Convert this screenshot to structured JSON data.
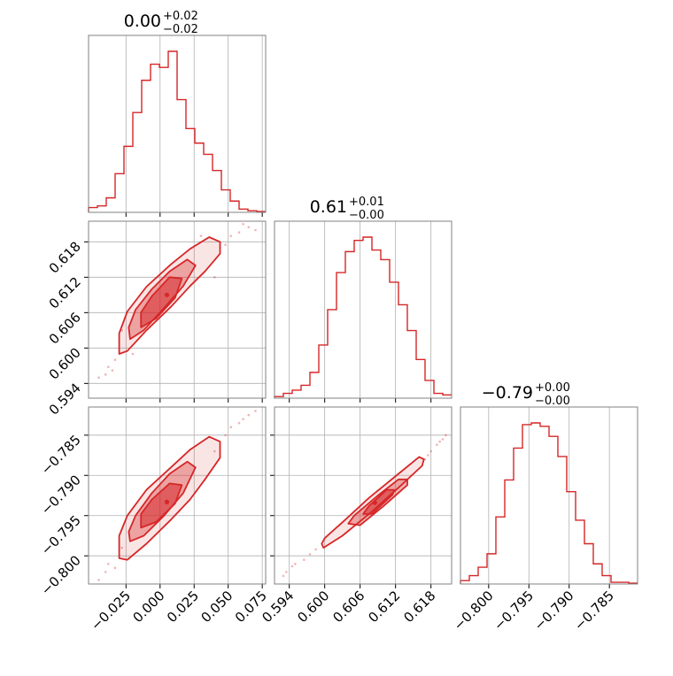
{
  "colors": {
    "accent": "#d62728",
    "frame": "#808080",
    "grid": "#b0b0b0"
  },
  "chart_data": [
    {
      "type": "histogram",
      "panel": "hist-param-1",
      "title": {
        "main": "0.00",
        "sup": "+0.02",
        "sub": "−0.02"
      },
      "xlim": [
        -0.0525,
        0.0775
      ],
      "xticks": [
        -0.025,
        0.0,
        0.025,
        0.05,
        0.075
      ],
      "grid": true,
      "bin_edges": [
        -0.0525,
        -0.046,
        -0.0395,
        -0.033,
        -0.0265,
        -0.02,
        -0.0135,
        -0.007,
        -0.0005,
        0.006,
        0.0125,
        0.019,
        0.0255,
        0.032,
        0.0385,
        0.045,
        0.0515,
        0.058,
        0.0645,
        0.071,
        0.0775
      ],
      "counts": [
        0.03,
        0.04,
        0.09,
        0.24,
        0.41,
        0.62,
        0.82,
        0.92,
        0.9,
        1.0,
        0.7,
        0.52,
        0.43,
        0.36,
        0.26,
        0.14,
        0.07,
        0.02,
        0.01,
        0.005
      ]
    },
    {
      "type": "histogram",
      "panel": "hist-param-2",
      "title": {
        "main": "0.61",
        "sup": "+0.01",
        "sub": "−0.00"
      },
      "xlim": [
        0.5915,
        0.6215
      ],
      "xticks": [
        "0.594",
        "0.600",
        "0.606",
        "0.612",
        "0.618"
      ],
      "grid": true,
      "bin_edges": [
        0.5915,
        0.593,
        0.5945,
        0.596,
        0.5975,
        0.599,
        0.6005,
        0.602,
        0.6035,
        0.605,
        0.6065,
        0.608,
        0.6095,
        0.611,
        0.6125,
        0.614,
        0.6155,
        0.617,
        0.6185,
        0.62,
        0.6215
      ],
      "counts": [
        0.01,
        0.03,
        0.05,
        0.08,
        0.16,
        0.33,
        0.55,
        0.78,
        0.91,
        0.98,
        1.0,
        0.92,
        0.86,
        0.72,
        0.58,
        0.42,
        0.24,
        0.11,
        0.03,
        0.02
      ]
    },
    {
      "type": "histogram",
      "panel": "hist-param-3",
      "title": {
        "main": "−0.79",
        "sup": "+0.00",
        "sub": "−0.00"
      },
      "xlim": [
        -0.8035,
        -0.7815
      ],
      "xticks": [
        "−0.800",
        "−0.795",
        "−0.790",
        "−0.785"
      ],
      "grid": true,
      "bin_edges": [
        -0.8035,
        -0.8024,
        -0.8013,
        -0.8002,
        -0.7991,
        -0.798,
        -0.7969,
        -0.7958,
        -0.7947,
        -0.7936,
        -0.7925,
        -0.7914,
        -0.7903,
        -0.7892,
        -0.7881,
        -0.787,
        -0.7859,
        -0.7848,
        -0.7837,
        -0.7826,
        -0.7815
      ],
      "counts": [
        0.02,
        0.05,
        0.1,
        0.18,
        0.4,
        0.62,
        0.81,
        0.95,
        0.96,
        0.94,
        0.88,
        0.76,
        0.55,
        0.38,
        0.24,
        0.12,
        0.05,
        0.01,
        0.01,
        0.005
      ]
    },
    {
      "type": "contour",
      "panel": "corner-2-vs-1",
      "xlim": [
        -0.0525,
        0.0775
      ],
      "ylim": [
        0.5915,
        0.6215
      ],
      "yticks": [
        "0.594",
        "0.600",
        "0.606",
        "0.612",
        "0.618"
      ],
      "grid": true,
      "center": [
        0.005,
        0.609
      ],
      "levels": [
        {
          "points": [
            [
              -0.03,
              0.599
            ],
            [
              -0.024,
              0.5995
            ],
            [
              -0.01,
              0.603
            ],
            [
              0.008,
              0.607
            ],
            [
              0.022,
              0.6105
            ],
            [
              0.033,
              0.613
            ],
            [
              0.044,
              0.616
            ],
            [
              0.044,
              0.618
            ],
            [
              0.036,
              0.6188
            ],
            [
              0.022,
              0.6168
            ],
            [
              0.008,
              0.6142
            ],
            [
              -0.01,
              0.6104
            ],
            [
              -0.024,
              0.6062
            ],
            [
              -0.03,
              0.6025
            ]
          ]
        },
        {
          "points": [
            [
              -0.022,
              0.6015
            ],
            [
              -0.012,
              0.603
            ],
            [
              0.003,
              0.6068
            ],
            [
              0.017,
              0.6105
            ],
            [
              0.026,
              0.614
            ],
            [
              0.02,
              0.615
            ],
            [
              0.007,
              0.613
            ],
            [
              -0.006,
              0.61
            ],
            [
              -0.018,
              0.6065
            ],
            [
              -0.023,
              0.6035
            ]
          ]
        },
        {
          "points": [
            [
              -0.014,
              0.6035
            ],
            [
              -0.003,
              0.605
            ],
            [
              0.011,
              0.6085
            ],
            [
              0.016,
              0.6118
            ],
            [
              0.007,
              0.612
            ],
            [
              -0.006,
              0.6088
            ],
            [
              -0.014,
              0.606
            ]
          ]
        }
      ],
      "scatter": [
        [
          -0.04,
          0.5955
        ],
        [
          -0.038,
          0.5968
        ],
        [
          -0.033,
          0.598
        ],
        [
          -0.035,
          0.5962
        ],
        [
          0.052,
          0.619
        ],
        [
          0.058,
          0.6196
        ],
        [
          0.065,
          0.6205
        ],
        [
          0.061,
          0.621
        ],
        [
          0.048,
          0.6175
        ],
        [
          -0.028,
          0.603
        ],
        [
          0.04,
          0.612
        ],
        [
          -0.045,
          0.595
        ],
        [
          0.07,
          0.62
        ],
        [
          -0.02,
          0.599
        ],
        [
          0.03,
          0.619
        ]
      ]
    },
    {
      "type": "contour",
      "panel": "corner-3-vs-1",
      "xlim": [
        -0.0525,
        0.0775
      ],
      "ylim": [
        -0.8035,
        -0.7815
      ],
      "yticks": [
        "−0.785",
        "−0.790",
        "−0.795",
        "−0.800"
      ],
      "grid": true,
      "center": [
        0.005,
        -0.7933
      ],
      "levels": [
        {
          "points": [
            [
              -0.03,
              -0.8003
            ],
            [
              -0.024,
              -0.8005
            ],
            [
              -0.01,
              -0.7985
            ],
            [
              0.008,
              -0.7955
            ],
            [
              0.022,
              -0.793
            ],
            [
              0.033,
              -0.7905
            ],
            [
              0.044,
              -0.7878
            ],
            [
              0.044,
              -0.7858
            ],
            [
              0.036,
              -0.7852
            ],
            [
              0.022,
              -0.7868
            ],
            [
              0.008,
              -0.789
            ],
            [
              -0.01,
              -0.7918
            ],
            [
              -0.024,
              -0.795
            ],
            [
              -0.03,
              -0.7975
            ]
          ]
        },
        {
          "points": [
            [
              -0.022,
              -0.7982
            ],
            [
              -0.012,
              -0.7975
            ],
            [
              0.003,
              -0.795
            ],
            [
              0.017,
              -0.7922
            ],
            [
              0.026,
              -0.789
            ],
            [
              0.02,
              -0.7883
            ],
            [
              0.007,
              -0.7898
            ],
            [
              -0.006,
              -0.7922
            ],
            [
              -0.018,
              -0.795
            ],
            [
              -0.023,
              -0.797
            ]
          ]
        },
        {
          "points": [
            [
              -0.014,
              -0.7965
            ],
            [
              -0.003,
              -0.7958
            ],
            [
              0.011,
              -0.7935
            ],
            [
              0.016,
              -0.7912
            ],
            [
              0.007,
              -0.791
            ],
            [
              -0.006,
              -0.793
            ],
            [
              -0.014,
              -0.7948
            ]
          ]
        }
      ],
      "scatter": [
        [
          -0.04,
          -0.802
        ],
        [
          -0.038,
          -0.801
        ],
        [
          -0.033,
          -0.8015
        ],
        [
          0.052,
          -0.784
        ],
        [
          0.058,
          -0.7835
        ],
        [
          0.065,
          -0.7825
        ],
        [
          0.061,
          -0.783
        ],
        [
          0.048,
          -0.785
        ],
        [
          -0.045,
          -0.803
        ],
        [
          0.07,
          -0.782
        ],
        [
          -0.028,
          -0.799
        ],
        [
          0.04,
          -0.787
        ]
      ]
    },
    {
      "type": "contour",
      "panel": "corner-3-vs-2",
      "xlim": [
        0.5915,
        0.6215
      ],
      "ylim": [
        -0.8035,
        -0.7815
      ],
      "grid": true,
      "center": [
        0.6085,
        -0.7934
      ],
      "levels": [
        {
          "points": [
            [
              0.5995,
              -0.7985
            ],
            [
              0.5998,
              -0.799
            ],
            [
              0.603,
              -0.7975
            ],
            [
              0.608,
              -0.7945
            ],
            [
              0.613,
              -0.7912
            ],
            [
              0.6165,
              -0.7888
            ],
            [
              0.6168,
              -0.788
            ],
            [
              0.616,
              -0.7877
            ],
            [
              0.6125,
              -0.7898
            ],
            [
              0.6075,
              -0.7928
            ],
            [
              0.6035,
              -0.7955
            ],
            [
              0.6,
              -0.7978
            ]
          ]
        },
        {
          "points": [
            [
              0.604,
              -0.796
            ],
            [
              0.606,
              -0.7962
            ],
            [
              0.61,
              -0.7938
            ],
            [
              0.614,
              -0.7912
            ],
            [
              0.614,
              -0.7905
            ],
            [
              0.6125,
              -0.7905
            ],
            [
              0.609,
              -0.7925
            ],
            [
              0.605,
              -0.795
            ]
          ]
        },
        {
          "points": [
            [
              0.6065,
              -0.7948
            ],
            [
              0.608,
              -0.7948
            ],
            [
              0.6115,
              -0.7924
            ],
            [
              0.6118,
              -0.7918
            ],
            [
              0.6105,
              -0.7918
            ],
            [
              0.6075,
              -0.7938
            ]
          ]
        }
      ],
      "scatter": [
        [
          0.5935,
          -0.802
        ],
        [
          0.595,
          -0.801
        ],
        [
          0.5965,
          -0.8005
        ],
        [
          0.5975,
          -0.7998
        ],
        [
          0.5985,
          -0.7992
        ],
        [
          0.617,
          -0.788
        ],
        [
          0.618,
          -0.787
        ],
        [
          0.619,
          -0.7862
        ],
        [
          0.62,
          -0.7855
        ],
        [
          0.6205,
          -0.785
        ],
        [
          0.5945,
          -0.8013
        ],
        [
          0.6175,
          -0.7875
        ],
        [
          0.6195,
          -0.7858
        ],
        [
          0.593,
          -0.8025
        ]
      ]
    }
  ]
}
